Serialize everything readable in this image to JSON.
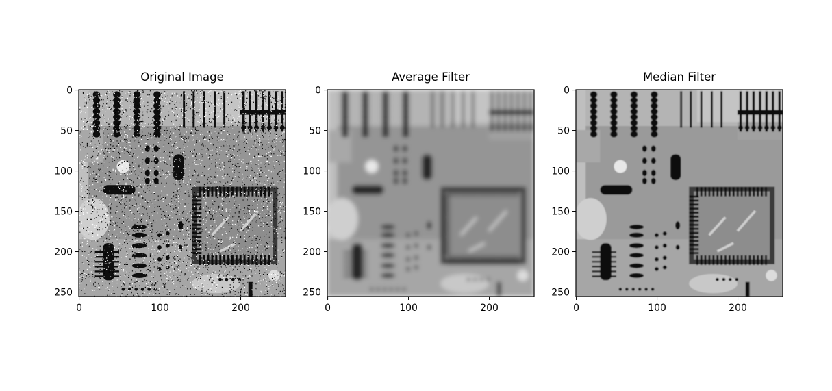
{
  "chart_data": [
    {
      "type": "heatmap",
      "title": "Original Image",
      "variant": "noisy",
      "colormap": "gray",
      "image_size": [
        256,
        256
      ],
      "xlim": [
        0,
        255
      ],
      "ylim": [
        255,
        0
      ],
      "xticks": [
        0,
        100,
        200
      ],
      "yticks": [
        0,
        50,
        100,
        150,
        200,
        250
      ],
      "xlabel": "",
      "ylabel": "",
      "grid": false
    },
    {
      "type": "heatmap",
      "title": "Average Filter",
      "variant": "blurred",
      "colormap": "gray",
      "image_size": [
        256,
        256
      ],
      "xlim": [
        0,
        255
      ],
      "ylim": [
        255,
        0
      ],
      "xticks": [
        0,
        100,
        200
      ],
      "yticks": [
        0,
        50,
        100,
        150,
        200,
        250
      ],
      "xlabel": "",
      "ylabel": "",
      "grid": false
    },
    {
      "type": "heatmap",
      "title": "Median Filter",
      "variant": "median",
      "colormap": "gray",
      "image_size": [
        256,
        256
      ],
      "xlim": [
        0,
        255
      ],
      "ylim": [
        255,
        0
      ],
      "xticks": [
        0,
        100,
        200
      ],
      "yticks": [
        0,
        50,
        100,
        150,
        200,
        250
      ],
      "xlabel": "",
      "ylabel": "",
      "grid": false
    }
  ]
}
